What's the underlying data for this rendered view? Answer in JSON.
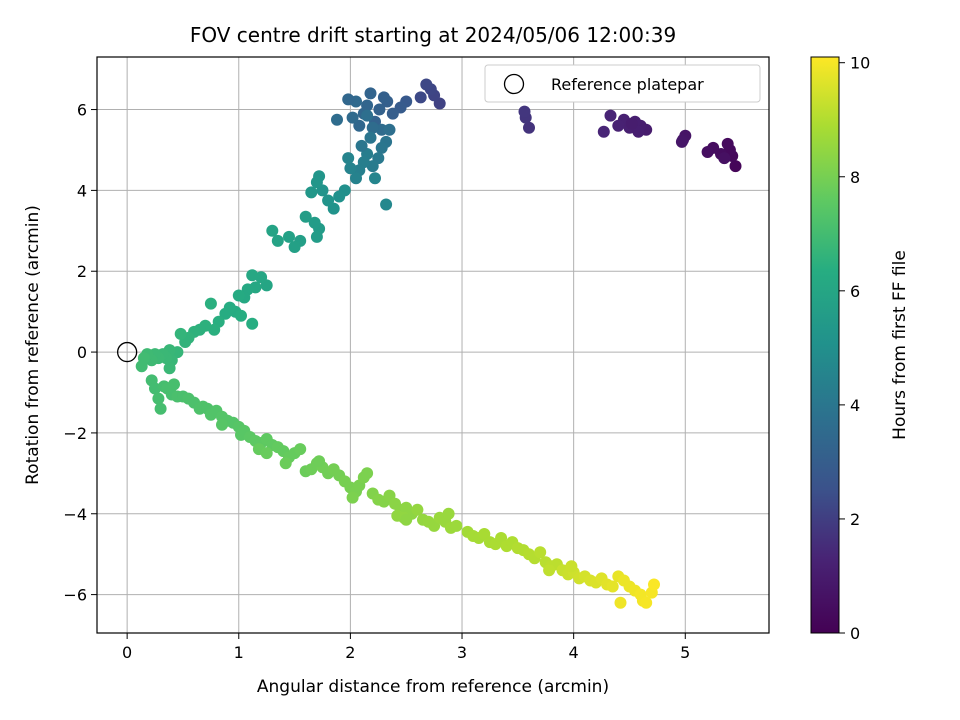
{
  "chart_data": {
    "type": "scatter",
    "title": "FOV centre drift starting at 2024/05/06 12:00:39",
    "xlabel": "Angular distance from reference (arcmin)",
    "ylabel": "Rotation from reference (arcmin)",
    "xlim": [
      -0.27,
      5.75
    ],
    "ylim": [
      -6.95,
      7.3
    ],
    "xticks": [
      0,
      1,
      2,
      3,
      4,
      5
    ],
    "yticks": [
      -6,
      -4,
      -2,
      0,
      2,
      4,
      6
    ],
    "grid": true,
    "colormap": "viridis",
    "colorbar": {
      "label": "Hours from first FF file",
      "range": [
        0,
        10.1
      ],
      "ticks": [
        0,
        2,
        4,
        6,
        8,
        10
      ]
    },
    "legend": {
      "position": "top-right",
      "entries": [
        "Reference platepar"
      ]
    },
    "reference_point": {
      "x": 0,
      "y": 0
    },
    "series": [
      {
        "points_xyc": [
          [
            5.45,
            4.6,
            0.2
          ],
          [
            5.42,
            4.85,
            0.25
          ],
          [
            5.4,
            5.0,
            0.3
          ],
          [
            5.38,
            5.15,
            0.35
          ],
          [
            5.32,
            4.9,
            0.4
          ],
          [
            5.25,
            5.05,
            0.45
          ],
          [
            5.2,
            4.95,
            0.5
          ],
          [
            5.35,
            4.8,
            0.55
          ],
          [
            5.0,
            5.35,
            0.7
          ],
          [
            4.98,
            5.25,
            0.75
          ],
          [
            4.97,
            5.2,
            0.8
          ],
          [
            4.65,
            5.5,
            1.0
          ],
          [
            4.6,
            5.6,
            1.05
          ],
          [
            4.55,
            5.7,
            1.1
          ],
          [
            4.5,
            5.55,
            1.15
          ],
          [
            4.45,
            5.75,
            1.2
          ],
          [
            4.4,
            5.6,
            1.25
          ],
          [
            4.33,
            5.85,
            1.3
          ],
          [
            4.27,
            5.45,
            1.35
          ],
          [
            4.58,
            5.45,
            1.1
          ],
          [
            4.52,
            5.65,
            1.05
          ],
          [
            3.6,
            5.55,
            1.7
          ],
          [
            3.57,
            5.8,
            1.75
          ],
          [
            3.56,
            5.95,
            1.8
          ],
          [
            2.8,
            6.15,
            2.1
          ],
          [
            2.75,
            6.35,
            2.15
          ],
          [
            2.72,
            6.5,
            2.2
          ],
          [
            2.68,
            6.62,
            2.25
          ],
          [
            2.63,
            6.3,
            2.3
          ],
          [
            2.5,
            6.2,
            2.8
          ],
          [
            2.45,
            6.05,
            2.9
          ],
          [
            2.38,
            5.9,
            3.0
          ],
          [
            2.33,
            6.2,
            3.05
          ],
          [
            2.3,
            6.3,
            3.1
          ],
          [
            2.26,
            6.0,
            3.15
          ],
          [
            2.22,
            5.7,
            3.2
          ],
          [
            2.18,
            6.4,
            3.25
          ],
          [
            2.15,
            6.1,
            3.3
          ],
          [
            2.12,
            5.9,
            3.35
          ],
          [
            2.08,
            5.6,
            3.4
          ],
          [
            2.05,
            6.2,
            3.45
          ],
          [
            2.02,
            5.8,
            3.5
          ],
          [
            1.98,
            6.25,
            3.4
          ],
          [
            1.88,
            5.75,
            3.6
          ],
          [
            2.28,
            5.5,
            3.55
          ],
          [
            2.2,
            5.55,
            3.6
          ],
          [
            2.15,
            5.85,
            3.7
          ],
          [
            2.35,
            5.5,
            3.7
          ],
          [
            2.32,
            5.2,
            3.9
          ],
          [
            2.28,
            5.05,
            4.0
          ],
          [
            2.25,
            4.8,
            4.1
          ],
          [
            2.2,
            4.6,
            4.2
          ],
          [
            2.15,
            4.9,
            4.25
          ],
          [
            2.12,
            4.7,
            4.3
          ],
          [
            2.08,
            4.5,
            4.35
          ],
          [
            2.05,
            4.3,
            4.45
          ],
          [
            2.0,
            4.55,
            4.5
          ],
          [
            1.98,
            4.8,
            4.55
          ],
          [
            2.1,
            5.1,
            4.0
          ],
          [
            2.18,
            5.3,
            3.95
          ],
          [
            2.22,
            4.3,
            4.6
          ],
          [
            2.32,
            3.65,
            4.7
          ],
          [
            1.95,
            4.0,
            5.0
          ],
          [
            1.9,
            3.85,
            5.05
          ],
          [
            1.85,
            3.55,
            5.15
          ],
          [
            1.8,
            3.75,
            5.2
          ],
          [
            1.75,
            4.0,
            5.2
          ],
          [
            1.72,
            4.35,
            5.25
          ],
          [
            1.7,
            4.2,
            5.3
          ],
          [
            1.65,
            3.95,
            5.35
          ],
          [
            1.72,
            3.05,
            5.5
          ],
          [
            1.7,
            2.85,
            5.55
          ],
          [
            1.68,
            3.2,
            5.55
          ],
          [
            1.6,
            3.35,
            5.6
          ],
          [
            1.55,
            2.75,
            5.7
          ],
          [
            1.5,
            2.6,
            5.75
          ],
          [
            1.45,
            2.85,
            5.8
          ],
          [
            1.35,
            2.75,
            5.85
          ],
          [
            1.3,
            3.0,
            5.9
          ],
          [
            1.25,
            1.65,
            6.0
          ],
          [
            1.2,
            1.85,
            6.05
          ],
          [
            1.15,
            1.6,
            6.1
          ],
          [
            1.12,
            1.9,
            6.1
          ],
          [
            1.08,
            1.55,
            6.15
          ],
          [
            1.05,
            1.35,
            6.15
          ],
          [
            1.0,
            1.4,
            6.2
          ],
          [
            0.97,
            1.0,
            6.25
          ],
          [
            0.92,
            1.1,
            6.3
          ],
          [
            0.88,
            0.95,
            6.3
          ],
          [
            1.12,
            0.7,
            6.35
          ],
          [
            1.02,
            0.9,
            6.35
          ],
          [
            0.82,
            0.75,
            6.4
          ],
          [
            0.78,
            0.55,
            6.45
          ],
          [
            0.75,
            1.2,
            6.45
          ],
          [
            0.7,
            0.65,
            6.5
          ],
          [
            0.65,
            0.55,
            6.5
          ],
          [
            0.6,
            0.5,
            6.55
          ],
          [
            0.55,
            0.35,
            6.6
          ],
          [
            0.52,
            0.25,
            6.6
          ],
          [
            0.48,
            0.45,
            6.65
          ],
          [
            0.45,
            0.0,
            6.7
          ],
          [
            0.4,
            -0.2,
            6.75
          ],
          [
            0.38,
            0.05,
            6.75
          ],
          [
            0.35,
            -0.15,
            6.8
          ],
          [
            0.32,
            -0.05,
            6.8
          ],
          [
            0.28,
            -0.15,
            6.85
          ],
          [
            0.25,
            -0.05,
            6.85
          ],
          [
            0.22,
            -0.2,
            6.9
          ],
          [
            0.18,
            -0.05,
            6.9
          ],
          [
            0.15,
            -0.15,
            6.95
          ],
          [
            0.13,
            -0.35,
            6.95
          ],
          [
            0.38,
            -0.4,
            6.8
          ],
          [
            0.22,
            -0.7,
            7.0
          ],
          [
            0.25,
            -0.9,
            7.0
          ],
          [
            0.28,
            -1.15,
            7.05
          ],
          [
            0.3,
            -1.4,
            7.05
          ],
          [
            0.33,
            -0.85,
            7.05
          ],
          [
            0.36,
            -0.9,
            7.1
          ],
          [
            0.4,
            -1.05,
            7.1
          ],
          [
            0.42,
            -0.8,
            7.1
          ],
          [
            0.45,
            -1.1,
            7.15
          ],
          [
            0.5,
            -1.1,
            7.15
          ],
          [
            0.55,
            -1.15,
            7.2
          ],
          [
            0.6,
            -1.25,
            7.2
          ],
          [
            0.65,
            -1.4,
            7.25
          ],
          [
            0.68,
            -1.35,
            7.25
          ],
          [
            0.72,
            -1.4,
            7.25
          ],
          [
            0.75,
            -1.55,
            7.3
          ],
          [
            0.8,
            -1.45,
            7.3
          ],
          [
            0.85,
            -1.6,
            7.35
          ],
          [
            0.9,
            -1.7,
            7.35
          ],
          [
            0.95,
            -1.75,
            7.35
          ],
          [
            1.0,
            -1.85,
            7.4
          ],
          [
            0.85,
            -1.8,
            7.4
          ],
          [
            1.02,
            -2.05,
            7.45
          ],
          [
            1.05,
            -1.95,
            7.45
          ],
          [
            1.1,
            -2.1,
            7.5
          ],
          [
            1.15,
            -2.2,
            7.55
          ],
          [
            1.2,
            -2.25,
            7.55
          ],
          [
            1.25,
            -2.15,
            7.6
          ],
          [
            1.3,
            -2.3,
            7.6
          ],
          [
            1.35,
            -2.35,
            7.65
          ],
          [
            1.4,
            -2.45,
            7.65
          ],
          [
            1.45,
            -2.6,
            7.7
          ],
          [
            1.5,
            -2.5,
            7.7
          ],
          [
            1.55,
            -2.4,
            7.75
          ],
          [
            1.18,
            -2.4,
            7.7
          ],
          [
            1.25,
            -2.5,
            7.75
          ],
          [
            1.42,
            -2.75,
            7.8
          ],
          [
            1.6,
            -2.95,
            7.8
          ],
          [
            1.65,
            -2.9,
            7.85
          ],
          [
            1.7,
            -2.75,
            7.85
          ],
          [
            1.75,
            -2.85,
            7.9
          ],
          [
            1.8,
            -3.0,
            7.9
          ],
          [
            1.85,
            -2.9,
            7.95
          ],
          [
            1.9,
            -3.05,
            7.95
          ],
          [
            1.95,
            -3.2,
            8.0
          ],
          [
            2.0,
            -3.35,
            8.0
          ],
          [
            2.05,
            -3.45,
            8.05
          ],
          [
            2.08,
            -3.3,
            8.05
          ],
          [
            2.12,
            -3.1,
            8.1
          ],
          [
            2.15,
            -3.0,
            8.1
          ],
          [
            2.02,
            -3.6,
            8.1
          ],
          [
            1.72,
            -2.7,
            7.85
          ],
          [
            2.2,
            -3.5,
            8.2
          ],
          [
            2.25,
            -3.65,
            8.25
          ],
          [
            2.3,
            -3.7,
            8.25
          ],
          [
            2.35,
            -3.55,
            8.3
          ],
          [
            2.4,
            -3.75,
            8.35
          ],
          [
            2.45,
            -3.9,
            8.35
          ],
          [
            2.5,
            -3.85,
            8.4
          ],
          [
            2.55,
            -4.0,
            8.4
          ],
          [
            2.42,
            -4.05,
            8.45
          ],
          [
            2.48,
            -4.1,
            8.45
          ],
          [
            2.6,
            -3.9,
            8.5
          ],
          [
            2.65,
            -4.15,
            8.5
          ],
          [
            2.7,
            -4.2,
            8.55
          ],
          [
            2.75,
            -4.3,
            8.55
          ],
          [
            2.8,
            -4.1,
            8.6
          ],
          [
            2.85,
            -4.2,
            8.6
          ],
          [
            2.9,
            -4.35,
            8.65
          ],
          [
            2.95,
            -4.3,
            8.65
          ],
          [
            2.88,
            -4.0,
            8.6
          ],
          [
            2.5,
            -4.15,
            8.4
          ],
          [
            3.05,
            -4.45,
            8.75
          ],
          [
            3.1,
            -4.55,
            8.8
          ],
          [
            3.15,
            -4.6,
            8.8
          ],
          [
            3.2,
            -4.5,
            8.85
          ],
          [
            3.25,
            -4.7,
            8.85
          ],
          [
            3.3,
            -4.75,
            8.9
          ],
          [
            3.35,
            -4.6,
            8.9
          ],
          [
            3.4,
            -4.8,
            8.95
          ],
          [
            3.45,
            -4.7,
            8.95
          ],
          [
            3.5,
            -4.85,
            9.0
          ],
          [
            3.55,
            -4.9,
            9.0
          ],
          [
            3.6,
            -5.0,
            9.05
          ],
          [
            3.65,
            -5.1,
            9.05
          ],
          [
            3.7,
            -4.95,
            9.1
          ],
          [
            3.75,
            -5.2,
            9.1
          ],
          [
            3.8,
            -5.3,
            9.15
          ],
          [
            3.85,
            -5.25,
            9.15
          ],
          [
            3.9,
            -5.4,
            9.3
          ],
          [
            3.95,
            -5.5,
            9.35
          ],
          [
            4.0,
            -5.45,
            9.4
          ],
          [
            4.05,
            -5.6,
            9.45
          ],
          [
            4.1,
            -5.55,
            9.5
          ],
          [
            4.15,
            -5.65,
            9.55
          ],
          [
            4.2,
            -5.7,
            9.6
          ],
          [
            4.25,
            -5.6,
            9.65
          ],
          [
            4.3,
            -5.75,
            9.7
          ],
          [
            4.35,
            -5.8,
            9.75
          ],
          [
            4.4,
            -5.55,
            9.8
          ],
          [
            4.45,
            -5.65,
            9.85
          ],
          [
            4.5,
            -5.8,
            9.85
          ],
          [
            4.55,
            -5.9,
            9.9
          ],
          [
            4.6,
            -6.0,
            9.95
          ],
          [
            4.62,
            -6.15,
            9.95
          ],
          [
            4.65,
            -6.2,
            10.0
          ],
          [
            4.7,
            -5.95,
            10.0
          ],
          [
            4.72,
            -5.75,
            10.05
          ],
          [
            4.42,
            -6.2,
            9.9
          ],
          [
            3.78,
            -5.4,
            9.2
          ],
          [
            3.98,
            -5.3,
            9.35
          ]
        ]
      }
    ]
  }
}
